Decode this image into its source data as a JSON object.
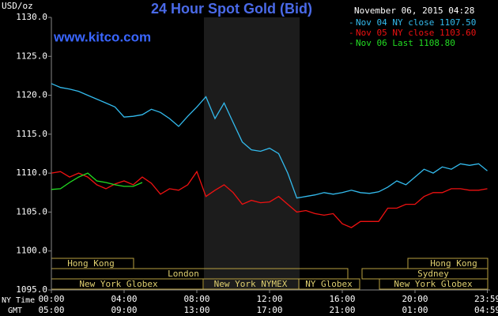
{
  "chart_data": {
    "type": "line",
    "title": "24 Hour Spot Gold (Bid)",
    "subtitle": "November 06, 2015 04:28",
    "watermark": "www.kitco.com",
    "y_label": "USD/oz",
    "x_label": "NY Time",
    "x2_label": "GMT",
    "x": [
      0,
      0.5,
      1,
      1.5,
      2,
      2.5,
      3,
      3.5,
      4,
      4.5,
      5,
      5.5,
      6,
      6.5,
      7,
      7.5,
      8,
      8.5,
      9,
      9.5,
      10,
      10.5,
      11,
      11.5,
      12,
      12.5,
      13,
      13.5,
      14,
      14.5,
      15,
      15.5,
      16,
      16.5,
      17,
      17.5,
      18,
      18.5,
      19,
      19.5,
      20,
      20.5,
      21,
      21.5,
      22,
      22.5,
      23,
      23.5,
      23.98
    ],
    "series": [
      {
        "name": "Nov 04 NY close 1107.50",
        "color": "#33bbee",
        "values": [
          1121.5,
          1121,
          1120.8,
          1120.5,
          1120,
          1119.5,
          1119,
          1118.5,
          1117.2,
          1117.3,
          1117.5,
          1118.2,
          1117.8,
          1117,
          1116,
          1117.3,
          1118.5,
          1119.8,
          1117,
          1119,
          1116.5,
          1114,
          1113,
          1112.8,
          1113.2,
          1112.5,
          1110,
          1106.8,
          1107,
          1107.2,
          1107.5,
          1107.3,
          1107.5,
          1107.8,
          1107.5,
          1107.4,
          1107.6,
          1108.2,
          1109,
          1108.5,
          1109.5,
          1110.5,
          1110,
          1110.8,
          1110.5,
          1111.2,
          1111,
          1111.2,
          1110.3
        ]
      },
      {
        "name": "Nov 05 NY close 1103.60",
        "color": "#ee1111",
        "values": [
          1110,
          1110.2,
          1109.5,
          1110,
          1109.5,
          1108.5,
          1108,
          1108.6,
          1109,
          1108.5,
          1109.5,
          1108.7,
          1107.3,
          1108,
          1107.8,
          1108.5,
          1110.2,
          1107,
          1107.8,
          1108.5,
          1107.5,
          1106,
          1106.5,
          1106.2,
          1106.3,
          1107,
          1106,
          1105,
          1105.2,
          1104.8,
          1104.6,
          1104.8,
          1103.5,
          1103,
          1103.8,
          1103.8,
          1103.8,
          1105.5,
          1105.5,
          1106,
          1106,
          1107,
          1107.5,
          1107.5,
          1108,
          1108,
          1107.8,
          1107.8,
          1108
        ]
      },
      {
        "name": "Nov 06 Last 1108.80",
        "color": "#22dd22",
        "values": [
          1107.9,
          1108,
          1108.8,
          1109.5,
          1110,
          1109,
          1108.8,
          1108.5,
          1108.3,
          1108.3,
          1108.8,
          null,
          null,
          null,
          null,
          null,
          null,
          null,
          null,
          null,
          null,
          null,
          null,
          null,
          null,
          null,
          null,
          null,
          null,
          null,
          null,
          null,
          null,
          null,
          null,
          null,
          null,
          null,
          null,
          null,
          null,
          null,
          null,
          null,
          null,
          null,
          null,
          null,
          null
        ]
      }
    ],
    "xlim": [
      0,
      24
    ],
    "xticks": [
      {
        "value": 0,
        "label": "00:00"
      },
      {
        "value": 4,
        "label": "04:00"
      },
      {
        "value": 8,
        "label": "08:00"
      },
      {
        "value": 12,
        "label": "12:00"
      },
      {
        "value": 16,
        "label": "16:00"
      },
      {
        "value": 20,
        "label": "20:00"
      },
      {
        "value": 23.98,
        "label": "23:59"
      }
    ],
    "x2ticks": [
      {
        "value": 0,
        "label": "05:00"
      },
      {
        "value": 4,
        "label": "09:00"
      },
      {
        "value": 8,
        "label": "13:00"
      },
      {
        "value": 12,
        "label": "17:00"
      },
      {
        "value": 16,
        "label": "21:00"
      },
      {
        "value": 20,
        "label": "01:00"
      },
      {
        "value": 23.98,
        "label": "04:59"
      }
    ],
    "ylim": [
      1095,
      1130
    ],
    "yticks": [
      {
        "value": 1095,
        "label": "1095.0"
      },
      {
        "value": 1100,
        "label": "1100.0"
      },
      {
        "value": 1105,
        "label": "1105.0"
      },
      {
        "value": 1110,
        "label": "1110.0"
      },
      {
        "value": 1115,
        "label": "1115.0"
      },
      {
        "value": 1120,
        "label": "1120.0"
      },
      {
        "value": 1125,
        "label": "1125.0"
      },
      {
        "value": 1130,
        "label": "1130.0"
      }
    ],
    "grid": false
  },
  "sessions": [
    "Hong Kong",
    "Hong Kong",
    "London",
    "Sydney",
    "New York Globex",
    "New York NYMEX",
    "NY Globex",
    "New York Globex"
  ]
}
